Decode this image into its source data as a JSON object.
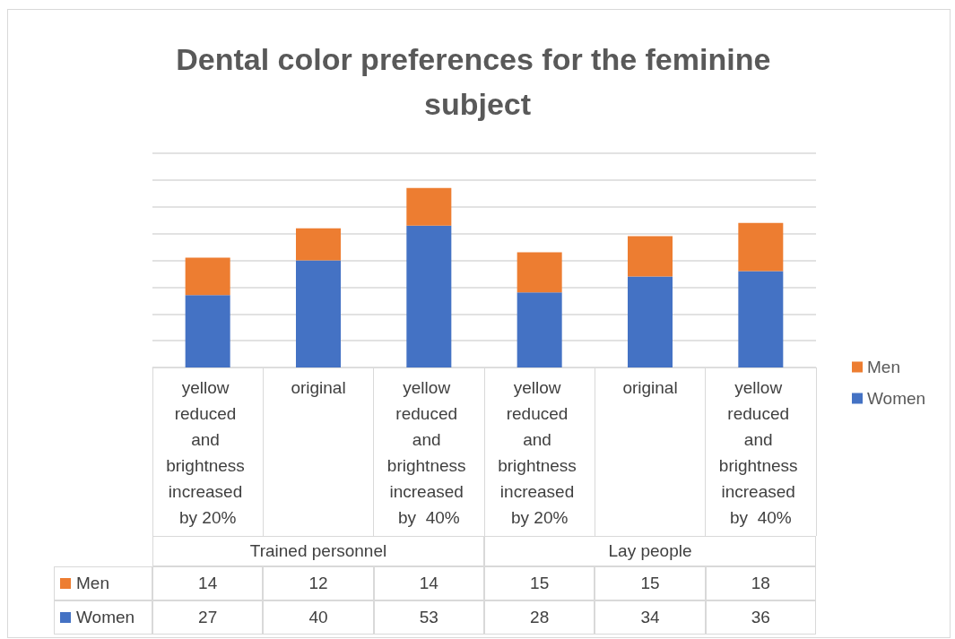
{
  "chart_data": {
    "type": "bar",
    "title": "Dental color preferences for the feminine subject",
    "categories": [
      "yellow reduced and brightness increased by 20%",
      "original",
      "yellow reduced and brightness increased by  40%",
      "yellow reduced and brightness increased by 20%",
      "original",
      "yellow reduced and brightness increased by  40%"
    ],
    "series": [
      {
        "name": "Women",
        "color": "#4472c4",
        "values": [
          27,
          40,
          53,
          28,
          34,
          36
        ]
      },
      {
        "name": "Men",
        "color": "#ed7d31",
        "values": [
          14,
          12,
          14,
          15,
          15,
          18
        ]
      }
    ],
    "annotations": [
      "Trained personnel",
      "Lay people"
    ],
    "stacked": true,
    "data_labels": true,
    "ylim": [
      0,
      80
    ],
    "yticks": [
      0,
      10,
      20,
      30,
      40,
      50,
      60,
      70,
      80
    ],
    "tick_labels": "x",
    "grid": "y",
    "legend": "right"
  }
}
